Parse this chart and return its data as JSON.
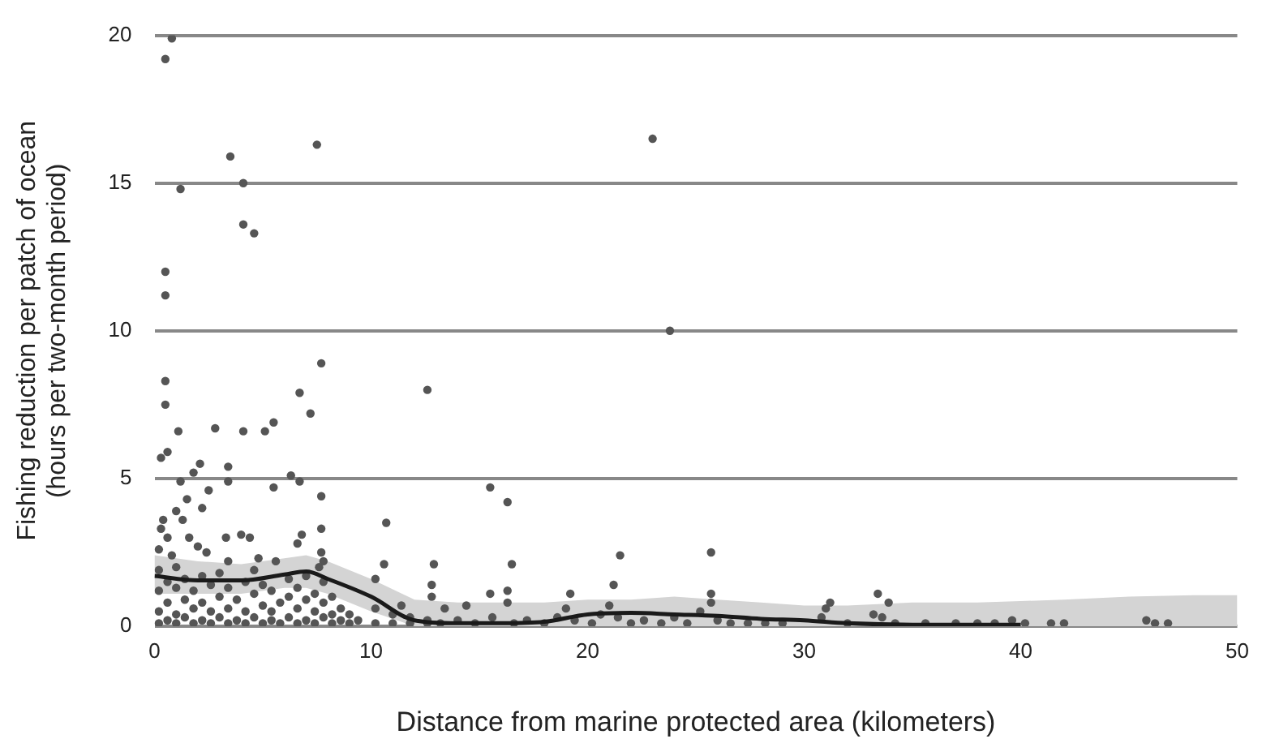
{
  "chart_data": {
    "type": "scatter",
    "xlabel": "Distance from marine protected area (kilometers)",
    "ylabel": "Fishing reduction per patch of ocean\n(hours per two-month period)",
    "xlim": [
      0,
      50
    ],
    "xticks": [
      0,
      10,
      20,
      30,
      40,
      50
    ],
    "ylim": [
      0,
      20
    ],
    "yticks": [
      0,
      5,
      10,
      15,
      20
    ],
    "grid": "y",
    "marker": "circle",
    "series": [
      {
        "color": "#555555",
        "x": [
          0.8,
          0.5,
          3.5,
          4.1,
          1.2,
          7.5,
          4.1,
          4.6,
          0.5,
          0.5,
          7.7,
          0.5,
          23.0,
          23.8,
          0.5,
          1.1,
          2.8,
          4.1,
          5.1,
          5.5,
          6.7,
          7.2,
          12.6,
          0.3,
          0.6,
          2.1,
          1.8,
          3.4,
          3.4,
          1.2,
          5.5,
          6.3,
          6.7,
          7.7,
          15.5,
          16.3,
          10.7,
          21.5,
          25.7,
          16.5,
          21.2,
          19.2,
          33.4,
          33.9,
          25.7,
          25.7,
          31.0,
          0.3,
          0.4,
          0.6,
          0.2,
          0.8,
          1.0,
          1.3,
          1.6,
          2.0,
          2.4,
          1.5,
          2.2,
          2.5,
          3.3,
          3.4,
          4.0,
          4.4,
          4.8,
          5.6,
          6.6,
          6.8,
          7.7,
          7.7,
          7.8,
          7.6,
          10.6,
          10.2,
          12.9,
          12.8,
          12.8,
          14.4,
          15.5,
          16.3,
          16.3,
          11.4,
          13.4,
          0.2,
          0.2,
          0.2,
          0.2,
          0.6,
          0.6,
          0.6,
          1.0,
          1.0,
          1.0,
          1.0,
          1.4,
          1.4,
          1.4,
          1.8,
          1.8,
          1.8,
          2.2,
          2.2,
          2.2,
          2.6,
          2.6,
          2.6,
          3.0,
          3.0,
          3.0,
          3.4,
          3.4,
          3.4,
          3.8,
          3.8,
          4.2,
          4.2,
          4.2,
          4.6,
          4.6,
          4.6,
          5.0,
          5.0,
          5.0,
          5.4,
          5.4,
          5.4,
          5.8,
          5.8,
          6.2,
          6.2,
          6.2,
          6.6,
          6.6,
          6.6,
          7.0,
          7.0,
          7.0,
          7.4,
          7.4,
          7.4,
          7.8,
          7.8,
          7.8,
          8.2,
          8.2,
          8.2,
          8.6,
          8.6,
          9.0,
          9.0,
          9.4,
          10.2,
          10.2,
          11.0,
          11.0,
          11.8,
          11.8,
          12.6,
          12.6,
          13.2,
          14.0,
          14.8,
          15.6,
          16.6,
          17.2,
          18.0,
          18.6,
          19.0,
          19.4,
          20.2,
          20.6,
          21.0,
          21.4,
          22.0,
          22.6,
          23.4,
          24.0,
          24.6,
          25.2,
          26.0,
          26.6,
          27.4,
          28.2,
          29.0,
          30.8,
          31.2,
          32.0,
          33.2,
          33.6,
          34.2,
          35.6,
          37.0,
          38.0,
          38.8,
          39.6,
          40.2,
          41.4,
          42.0,
          45.8,
          46.2,
          46.8
        ],
        "values": [
          19.9,
          19.2,
          15.9,
          15.0,
          14.8,
          16.3,
          13.6,
          13.3,
          12.0,
          11.2,
          8.9,
          8.3,
          16.5,
          10.0,
          7.5,
          6.6,
          6.7,
          6.6,
          6.6,
          6.9,
          7.9,
          7.2,
          8.0,
          5.7,
          5.9,
          5.5,
          5.2,
          5.4,
          4.9,
          4.9,
          4.7,
          5.1,
          4.9,
          4.4,
          4.7,
          4.2,
          3.5,
          2.4,
          2.5,
          2.1,
          1.4,
          1.1,
          1.1,
          0.8,
          1.1,
          0.8,
          0.6,
          3.3,
          3.6,
          3.0,
          2.6,
          2.4,
          3.9,
          3.6,
          3.0,
          2.7,
          2.5,
          4.3,
          4.0,
          4.6,
          3.0,
          2.2,
          3.1,
          3.0,
          2.3,
          2.2,
          2.8,
          3.1,
          3.3,
          2.5,
          2.2,
          2.0,
          2.1,
          1.6,
          2.1,
          1.4,
          1.0,
          0.7,
          1.1,
          1.2,
          0.8,
          0.7,
          0.6,
          0.1,
          0.5,
          1.2,
          1.9,
          0.2,
          0.8,
          1.5,
          0.1,
          0.4,
          1.3,
          2.0,
          0.3,
          0.9,
          1.6,
          0.1,
          0.6,
          1.2,
          0.2,
          0.8,
          1.7,
          0.1,
          0.5,
          1.4,
          0.3,
          1.0,
          1.8,
          0.1,
          0.6,
          1.3,
          0.2,
          0.9,
          0.1,
          0.5,
          1.5,
          0.3,
          1.1,
          1.9,
          0.1,
          0.7,
          1.4,
          0.2,
          0.5,
          1.2,
          0.1,
          0.8,
          0.3,
          1.0,
          1.6,
          0.1,
          0.6,
          1.3,
          0.2,
          0.9,
          1.7,
          0.1,
          0.5,
          1.1,
          0.3,
          0.8,
          1.5,
          0.1,
          0.4,
          1.0,
          0.2,
          0.6,
          0.1,
          0.4,
          0.2,
          0.1,
          0.6,
          0.1,
          0.4,
          0.1,
          0.3,
          0.1,
          0.2,
          0.1,
          0.2,
          0.1,
          0.3,
          0.1,
          0.2,
          0.1,
          0.3,
          0.6,
          0.2,
          0.1,
          0.4,
          0.7,
          0.3,
          0.1,
          0.2,
          0.1,
          0.3,
          0.1,
          0.5,
          0.2,
          0.1,
          0.1,
          0.1,
          0.1,
          0.3,
          0.8,
          0.1,
          0.4,
          0.3,
          0.1,
          0.1,
          0.1,
          0.1,
          0.1,
          0.2,
          0.1,
          0.1,
          0.1,
          0.2,
          0.1,
          0.1
        ]
      },
      {
        "type": "line",
        "color": "#1a1a1a",
        "marker": "none",
        "x": [
          0,
          2,
          4,
          6,
          7,
          8,
          10,
          12,
          14,
          16,
          18,
          20,
          22,
          24,
          26,
          28,
          30,
          32,
          35,
          38,
          40,
          42,
          45,
          48,
          50
        ],
        "values": [
          1.7,
          1.55,
          1.55,
          1.75,
          1.85,
          1.6,
          1.0,
          0.2,
          0.1,
          0.1,
          0.15,
          0.4,
          0.45,
          0.4,
          0.35,
          0.25,
          0.2,
          0.1,
          0.05,
          0.05,
          0.05,
          null,
          null,
          null,
          null
        ],
        "lower": [
          1.1,
          1.1,
          1.1,
          1.3,
          1.3,
          1.1,
          0.5,
          0,
          0,
          0,
          0,
          0,
          0,
          0,
          0,
          0,
          0,
          0,
          0,
          0,
          0,
          0,
          0,
          0,
          0
        ],
        "upper": [
          2.4,
          2.2,
          2.1,
          2.3,
          2.4,
          2.2,
          1.6,
          0.9,
          0.8,
          0.8,
          0.8,
          0.9,
          0.9,
          1.0,
          0.9,
          0.8,
          0.7,
          0.7,
          0.8,
          0.8,
          0.85,
          0.9,
          1.0,
          1.05,
          1.05
        ]
      }
    ]
  }
}
